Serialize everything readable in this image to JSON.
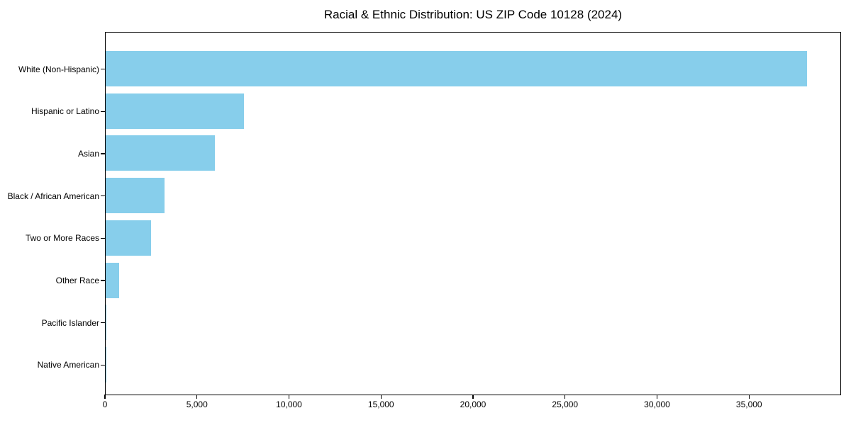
{
  "chart_data": {
    "type": "bar",
    "orientation": "horizontal",
    "title": "Racial & Ethnic Distribution: US ZIP Code 10128 (2024)",
    "categories": [
      "White (Non-Hispanic)",
      "Hispanic or Latino",
      "Asian",
      "Black / African American",
      "Two or More Races",
      "Other Race",
      "Pacific Islander",
      "Native American"
    ],
    "values": [
      38100,
      7500,
      5950,
      3190,
      2460,
      730,
      30,
      20
    ],
    "xlabel": "",
    "ylabel": "",
    "xlim": [
      0,
      40000
    ],
    "xticks": [
      0,
      5000,
      10000,
      15000,
      20000,
      25000,
      30000,
      35000
    ],
    "xtick_labels": [
      "0",
      "5,000",
      "10,000",
      "15,000",
      "20,000",
      "25,000",
      "30,000",
      "35,000"
    ],
    "bar_color": "#87CEEB",
    "background_color": "#FFFFFF",
    "spine_color": "#000000",
    "grid": false,
    "legend_position": "none"
  }
}
